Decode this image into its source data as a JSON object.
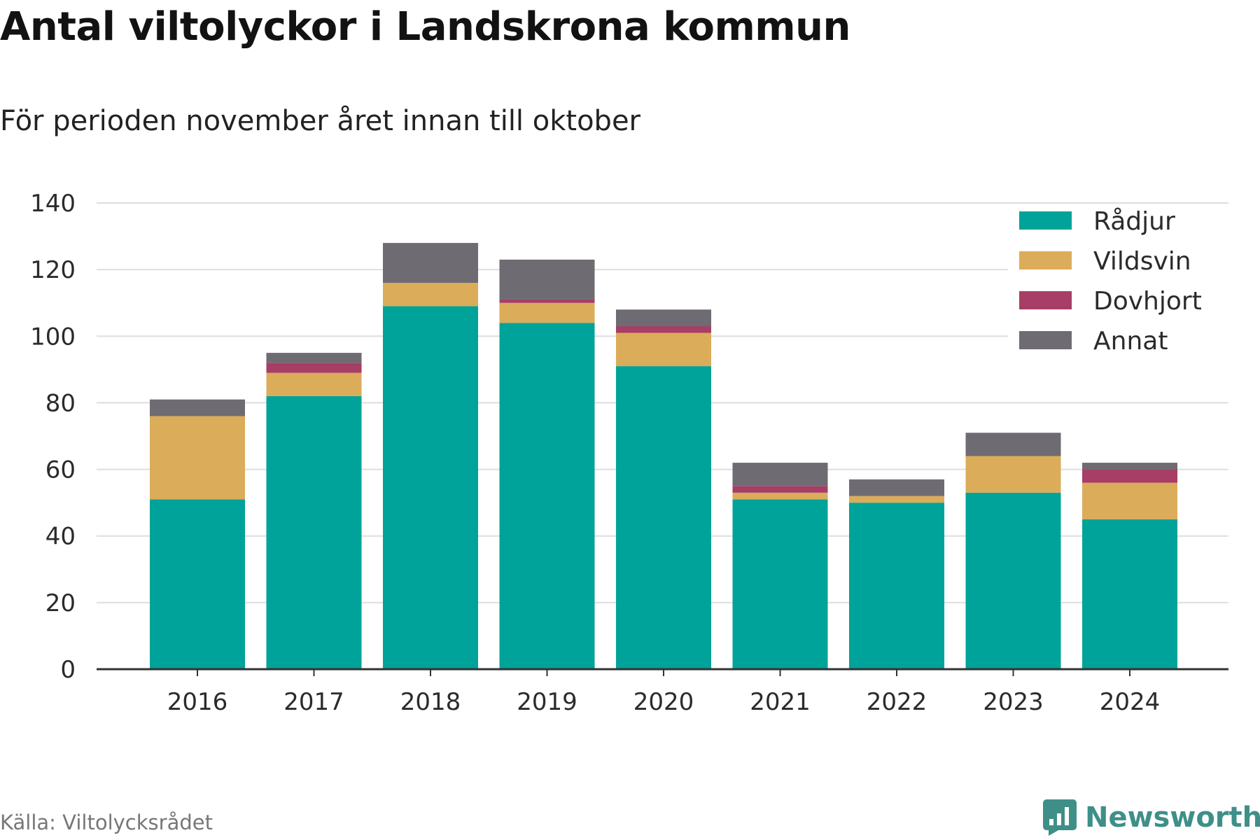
{
  "title": "Antal viltolyckor i Landskrona kommun",
  "subtitle": "För perioden november året innan till oktober",
  "source": "Källa: Viltolycksrådet",
  "brand": {
    "name": "Newsworthy",
    "icon": "newsworthy-logo-icon",
    "color": "#3f8f89"
  },
  "chart_data": {
    "type": "bar",
    "stacked": true,
    "categories": [
      "2016",
      "2017",
      "2018",
      "2019",
      "2020",
      "2021",
      "2022",
      "2023",
      "2024"
    ],
    "series": [
      {
        "name": "Rådjur",
        "color": "#00a39a",
        "values": [
          51,
          82,
          109,
          104,
          91,
          51,
          50,
          53,
          45
        ]
      },
      {
        "name": "Vildsvin",
        "color": "#dbac5a",
        "values": [
          25,
          7,
          7,
          6,
          10,
          2,
          2,
          11,
          11
        ]
      },
      {
        "name": "Dovhjort",
        "color": "#a63e65",
        "values": [
          0,
          3,
          0,
          1,
          2,
          2,
          0,
          0,
          4
        ]
      },
      {
        "name": "Annat",
        "color": "#6e6c72",
        "values": [
          5,
          3,
          12,
          12,
          5,
          7,
          5,
          7,
          2
        ]
      }
    ],
    "ylim": [
      0,
      140
    ],
    "yticks": [
      0,
      20,
      40,
      60,
      80,
      100,
      120,
      140
    ],
    "grid": true,
    "legend_position": "top-right"
  }
}
